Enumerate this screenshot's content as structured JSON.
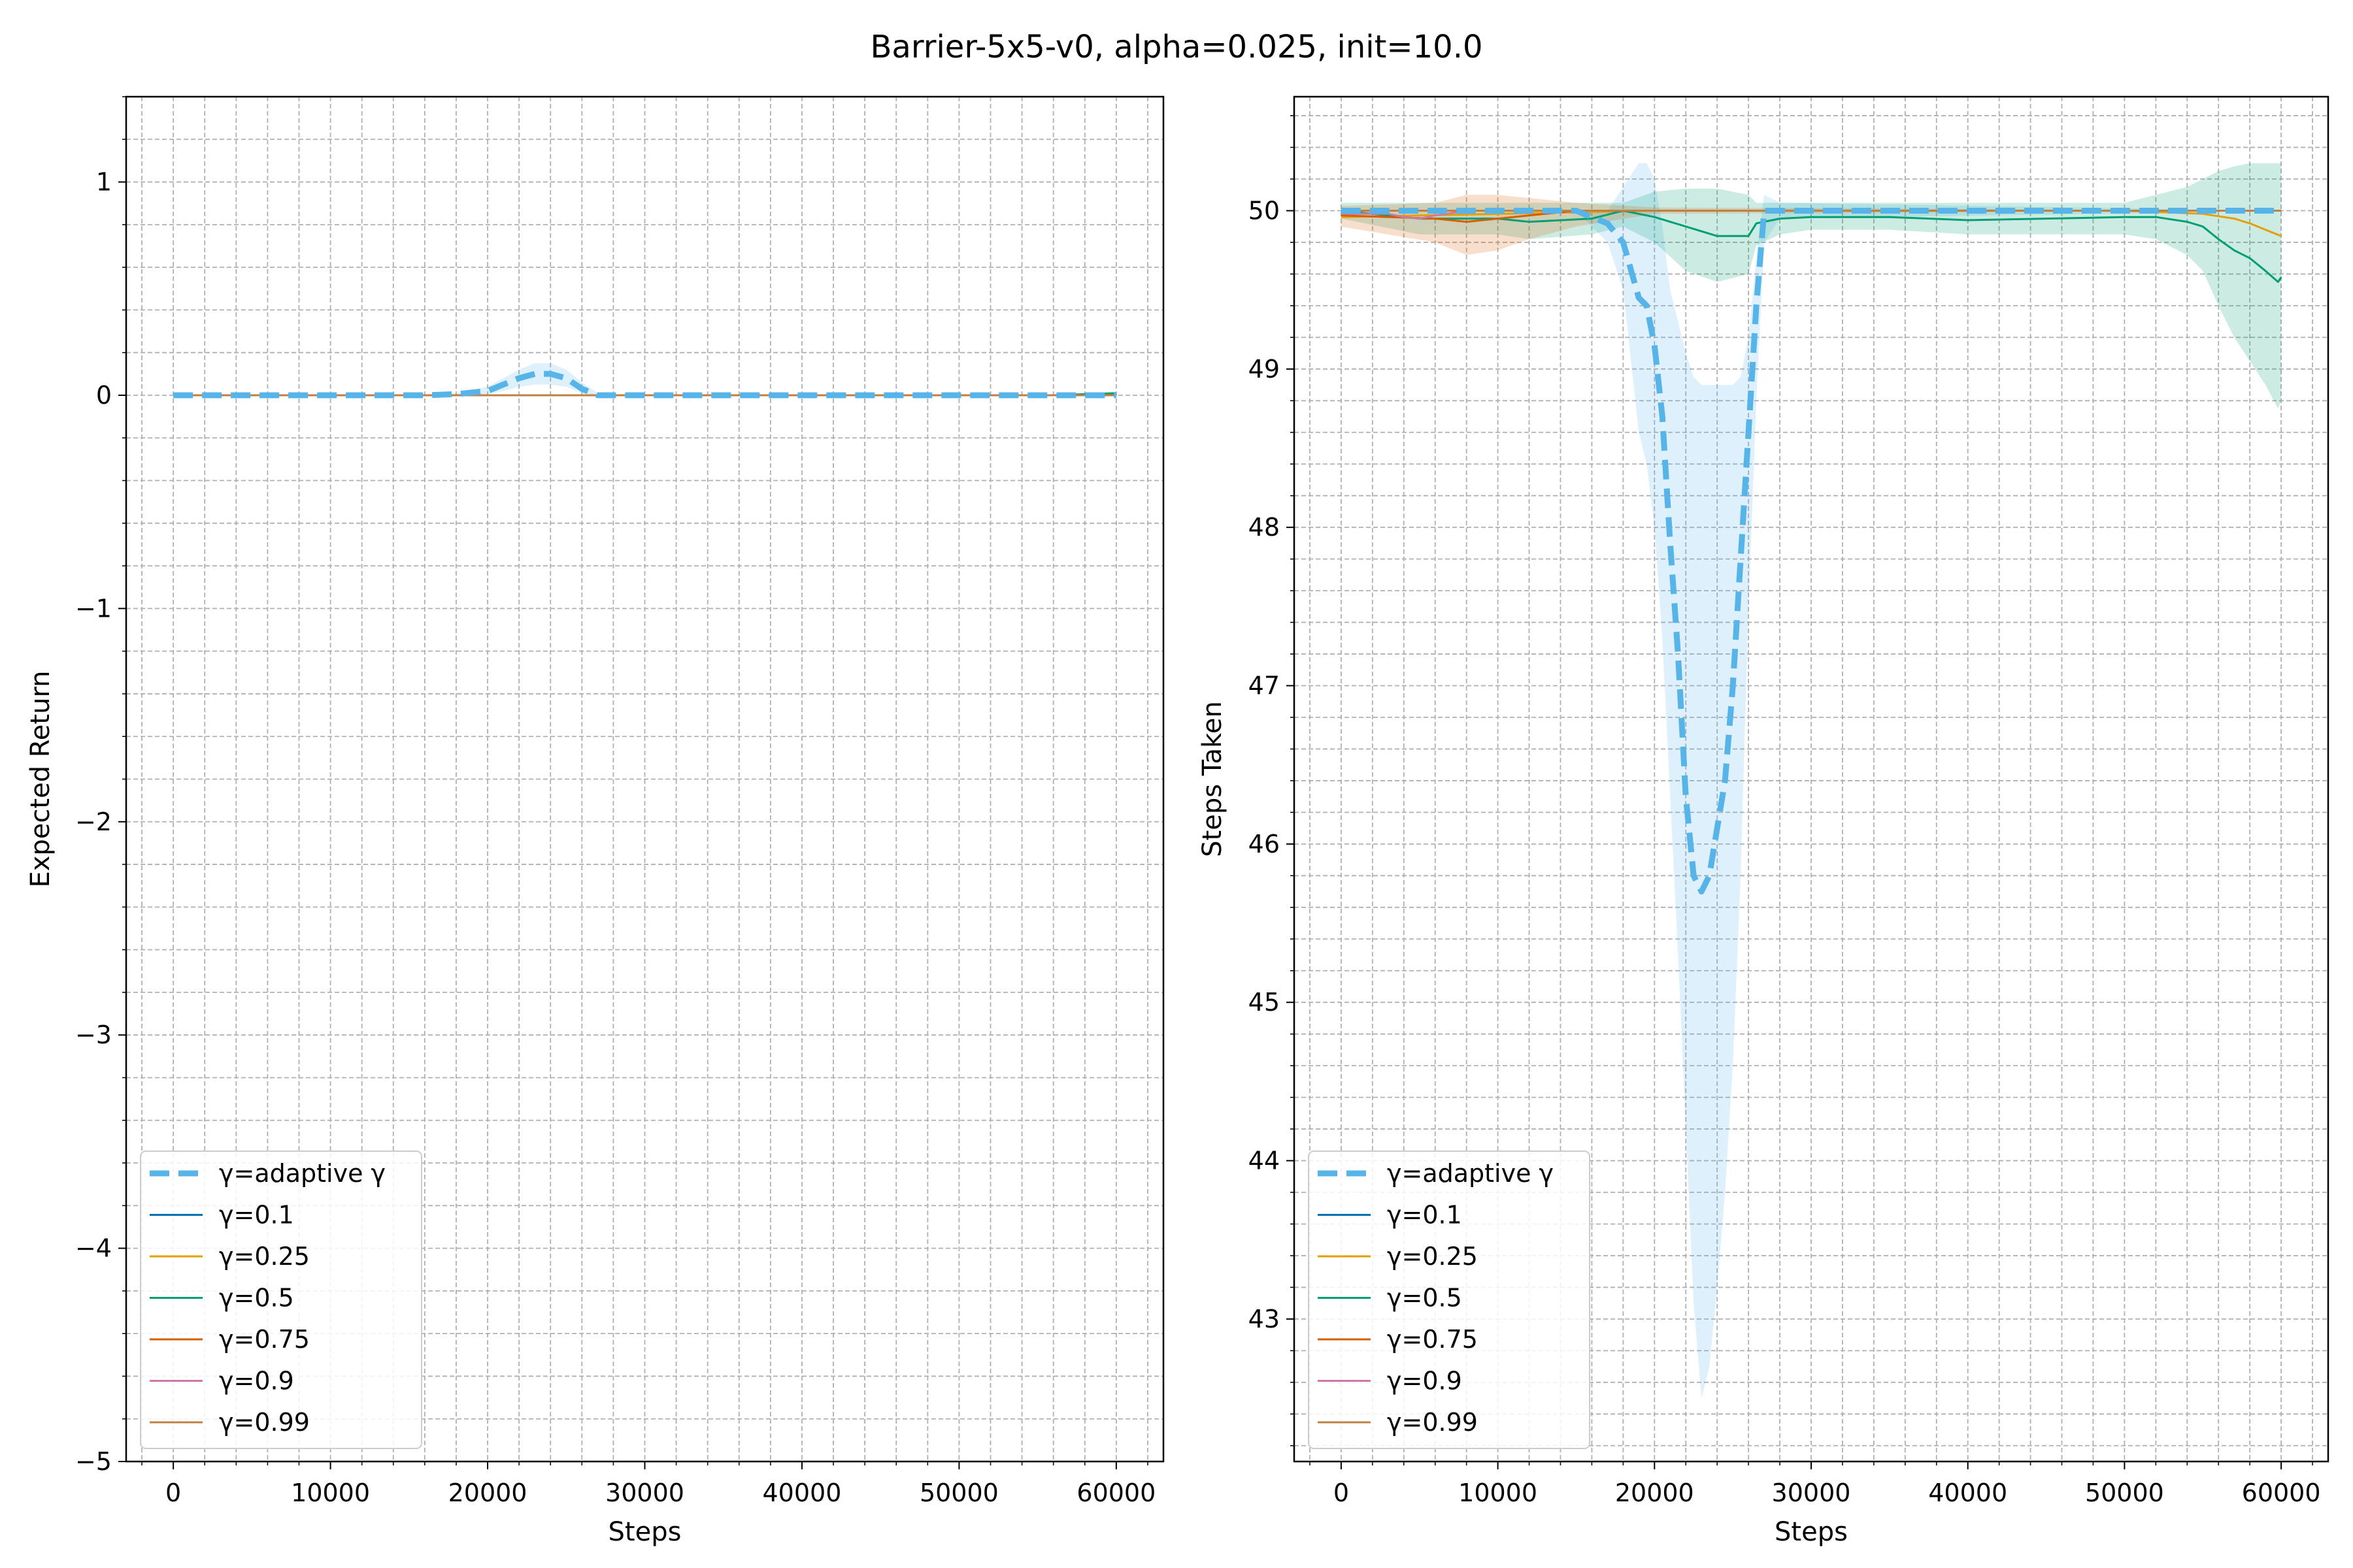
{
  "figure": {
    "title": "Barrier-5x5-v0, alpha=0.025, init=10.0"
  },
  "colors": {
    "adaptive": "#56b4e9",
    "g01": "#0072b2",
    "g025": "#e69f00",
    "g05": "#009e73",
    "g075": "#d55e00",
    "g09": "#cc79a7",
    "g099": "#c08040",
    "grid": "#b0b0b0"
  },
  "legend_labels": [
    "γ=adaptive γ",
    "γ=0.1",
    "γ=0.25",
    "γ=0.5",
    "γ=0.75",
    "γ=0.9",
    "γ=0.99"
  ],
  "chart_data": [
    {
      "type": "line",
      "xlabel": "Steps",
      "ylabel": "Expected Return",
      "xlim": [
        -3000,
        63000
      ],
      "ylim": [
        -5,
        1.4
      ],
      "xticks": [
        0,
        10000,
        20000,
        30000,
        40000,
        50000,
        60000
      ],
      "yticks": [
        1,
        0,
        -1,
        -2,
        -3,
        -4,
        -5
      ],
      "ytick_labels": [
        "1",
        "0",
        "−1",
        "−2",
        "−3",
        "−4",
        "−5"
      ],
      "grid": true,
      "legend": "lower-left",
      "series": [
        {
          "name": "γ=adaptive γ",
          "style": "dashed",
          "x": [
            0,
            16000,
            18000,
            20000,
            21000,
            22000,
            23000,
            24000,
            25000,
            26000,
            27000,
            30000,
            60000
          ],
          "y": [
            0,
            0,
            0.005,
            0.02,
            0.05,
            0.08,
            0.1,
            0.1,
            0.08,
            0.03,
            0,
            0,
            0
          ],
          "band_upper": [
            0,
            0,
            0.01,
            0.04,
            0.08,
            0.12,
            0.15,
            0.15,
            0.12,
            0.06,
            0.01,
            0,
            0
          ],
          "band_lower": [
            0,
            0,
            0,
            0.005,
            0.02,
            0.04,
            0.05,
            0.05,
            0.04,
            0.01,
            0,
            0,
            0
          ]
        },
        {
          "name": "γ=0.1",
          "x": [
            0,
            60000
          ],
          "y": [
            0,
            0
          ]
        },
        {
          "name": "γ=0.25",
          "x": [
            0,
            60000
          ],
          "y": [
            0,
            0
          ]
        },
        {
          "name": "γ=0.5",
          "x": [
            0,
            56000,
            60000
          ],
          "y": [
            0,
            0,
            0.01
          ]
        },
        {
          "name": "γ=0.75",
          "x": [
            0,
            60000
          ],
          "y": [
            0,
            0
          ]
        },
        {
          "name": "γ=0.9",
          "x": [
            0,
            60000
          ],
          "y": [
            0,
            0
          ]
        },
        {
          "name": "γ=0.99",
          "x": [
            0,
            60000
          ],
          "y": [
            0,
            0
          ]
        }
      ]
    },
    {
      "type": "line",
      "xlabel": "Steps",
      "ylabel": "Steps Taken",
      "xlim": [
        -3000,
        63000
      ],
      "ylim": [
        42.1,
        50.72
      ],
      "xticks": [
        0,
        10000,
        20000,
        30000,
        40000,
        50000,
        60000
      ],
      "yticks": [
        50,
        49,
        48,
        47,
        46,
        45,
        44,
        43
      ],
      "ytick_labels": [
        "50",
        "49",
        "48",
        "47",
        "46",
        "45",
        "44",
        "43"
      ],
      "grid": true,
      "legend": "lower-left",
      "series": [
        {
          "name": "γ=adaptive γ",
          "style": "dashed",
          "x": [
            0,
            15000,
            17000,
            18000,
            19000,
            19500,
            20000,
            20500,
            21000,
            21500,
            22000,
            22500,
            23000,
            23500,
            24000,
            24500,
            25000,
            25500,
            26000,
            26500,
            27000,
            28000,
            60000
          ],
          "y": [
            50,
            50,
            49.92,
            49.8,
            49.45,
            49.4,
            49.15,
            48.7,
            47.9,
            47.2,
            46.3,
            45.8,
            45.7,
            45.8,
            46.1,
            46.4,
            47.0,
            47.8,
            48.6,
            49.4,
            50,
            50,
            50
          ],
          "band_upper": [
            50,
            50,
            50.0,
            50.15,
            50.3,
            50.3,
            50.2,
            49.9,
            49.5,
            49.3,
            49.1,
            48.95,
            48.9,
            48.9,
            48.9,
            48.9,
            48.9,
            48.95,
            49.2,
            49.7,
            50.1,
            50.05,
            50
          ],
          "band_lower": [
            50,
            50,
            49.8,
            49.5,
            48.6,
            48.4,
            48.0,
            47.3,
            46.3,
            45.3,
            44.2,
            43.1,
            42.5,
            42.7,
            43.2,
            43.8,
            44.6,
            45.8,
            47.5,
            48.8,
            49.8,
            49.95,
            50
          ]
        },
        {
          "name": "γ=0.1",
          "x": [
            0,
            60000
          ],
          "y": [
            50,
            50
          ]
        },
        {
          "name": "γ=0.25",
          "x": [
            0,
            20000,
            30000,
            50000,
            55000,
            57000,
            58000,
            59000,
            60000
          ],
          "y": [
            49.96,
            50,
            50,
            50,
            49.98,
            49.95,
            49.92,
            49.88,
            49.84
          ]
        },
        {
          "name": "γ=0.5",
          "x": [
            0,
            5000,
            10000,
            12000,
            16000,
            18000,
            20000,
            22000,
            24000,
            26000,
            26500,
            28000,
            30000,
            35000,
            40000,
            45000,
            50000,
            52000,
            54000,
            55000,
            56000,
            57000,
            58000,
            59000,
            59800,
            60000
          ],
          "y": [
            50,
            49.95,
            49.95,
            49.93,
            49.95,
            50,
            49.96,
            49.9,
            49.84,
            49.84,
            49.92,
            49.95,
            49.96,
            49.96,
            49.94,
            49.95,
            49.96,
            49.96,
            49.93,
            49.9,
            49.82,
            49.75,
            49.7,
            49.62,
            49.55,
            49.58
          ],
          "band_upper": [
            50.05,
            50.05,
            50.05,
            50.05,
            50.05,
            50.05,
            50.12,
            50.14,
            50.14,
            50.1,
            50.05,
            50.05,
            50.05,
            50.05,
            50.05,
            50.05,
            50.05,
            50.1,
            50.15,
            50.2,
            50.25,
            50.28,
            50.3,
            50.3,
            50.3,
            50.3
          ],
          "band_lower": [
            49.95,
            49.85,
            49.85,
            49.82,
            49.85,
            49.9,
            49.8,
            49.62,
            49.55,
            49.6,
            49.78,
            49.85,
            49.88,
            49.88,
            49.85,
            49.85,
            49.85,
            49.82,
            49.72,
            49.62,
            49.4,
            49.2,
            49.05,
            48.9,
            48.75,
            48.8
          ]
        },
        {
          "name": "γ=0.75",
          "x": [
            0,
            6000,
            8000,
            10000,
            12000,
            15000,
            20000,
            60000
          ],
          "y": [
            49.97,
            49.95,
            49.93,
            49.95,
            49.97,
            50,
            50,
            50
          ],
          "band_upper": [
            50.03,
            50.05,
            50.1,
            50.1,
            50.08,
            50.05,
            50.02,
            50.0
          ],
          "band_lower": [
            49.9,
            49.8,
            49.72,
            49.75,
            49.82,
            49.9,
            49.98,
            50.0
          ]
        },
        {
          "name": "γ=0.9",
          "x": [
            0,
            3000,
            4000,
            5000,
            6000,
            8000,
            60000
          ],
          "y": [
            49.98,
            49.98,
            49.96,
            49.95,
            49.97,
            50,
            50
          ]
        },
        {
          "name": "γ=0.99",
          "x": [
            0,
            60000
          ],
          "y": [
            50,
            50
          ]
        }
      ]
    }
  ]
}
